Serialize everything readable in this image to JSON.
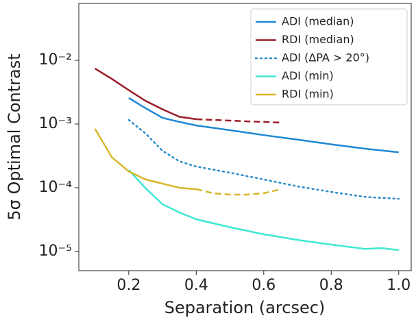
{
  "chart_data": {
    "type": "line",
    "xlabel": "Separation (arcsec)",
    "ylabel": "5σ Optimal Contrast",
    "xlim": [
      0.052,
      1.037
    ],
    "ylim": [
      5e-06,
      0.078
    ],
    "yscale": "log",
    "xticks": [
      0.2,
      0.4,
      0.6,
      0.8,
      {
        "value": 1,
        "label": "1.0"
      }
    ],
    "yticks": [
      {
        "value": 0.01,
        "label": "10⁻²"
      },
      {
        "value": 0.001,
        "label": "10⁻³"
      },
      {
        "value": 0.0001,
        "label": "10⁻⁴"
      },
      {
        "value": 1e-05,
        "label": "10⁻⁵"
      }
    ],
    "legend": "upper right",
    "series": [
      {
        "name": "ADI (median)",
        "color": "#1f88d4",
        "linestyle": "solid",
        "x": [
          0.2,
          0.25,
          0.3,
          0.35,
          0.4,
          0.5,
          0.6,
          0.7,
          0.8,
          0.9,
          1
        ],
        "values": [
          0.00256,
          0.00177,
          0.00125,
          0.00108,
          0.00095,
          0.0008,
          0.00067,
          0.00057,
          0.00048,
          0.00041,
          0.00036
        ]
      },
      {
        "name": "RDI (median)",
        "color": "#9b1c28",
        "linestyle": "solid",
        "dashed_from": 0.4,
        "x": [
          0.1,
          0.15,
          0.2,
          0.25,
          0.3,
          0.35,
          0.4,
          0.45,
          0.5,
          0.55,
          0.6,
          0.65
        ],
        "values": [
          0.0074,
          0.0051,
          0.0034,
          0.0023,
          0.0017,
          0.0013,
          0.00119,
          0.00116,
          0.00113,
          0.0011,
          0.00108,
          0.00105
        ]
      },
      {
        "name": "ADI (ΔPA > 20°)",
        "color": "#2a8ac8",
        "linestyle": "dotted",
        "x": [
          0.2,
          0.25,
          0.3,
          0.35,
          0.4,
          0.5,
          0.6,
          0.7,
          0.8,
          0.9,
          1
        ],
        "values": [
          0.00116,
          0.00071,
          0.00038,
          0.00026,
          0.000215,
          0.000172,
          0.000135,
          0.000105,
          8.6e-05,
          7.2e-05,
          6.7e-05
        ]
      },
      {
        "name": "ADI (min)",
        "color": "#3ee8d0",
        "linestyle": "solid",
        "x": [
          0.2,
          0.25,
          0.3,
          0.35,
          0.4,
          0.5,
          0.6,
          0.7,
          0.8,
          0.9,
          0.95,
          1
        ],
        "values": [
          0.00019,
          9.8e-05,
          5.5e-05,
          4.1e-05,
          3.2e-05,
          2.4e-05,
          1.86e-05,
          1.52e-05,
          1.28e-05,
          1.1e-05,
          1.13e-05,
          1.05e-05
        ]
      },
      {
        "name": "RDI (min)",
        "color": "#d8b62a",
        "linestyle": "solid",
        "dashed_from": 0.4,
        "x": [
          0.1,
          0.15,
          0.2,
          0.25,
          0.3,
          0.35,
          0.4,
          0.45,
          0.5,
          0.55,
          0.6,
          0.65
        ],
        "values": [
          0.00084,
          0.0003,
          0.00018,
          0.000135,
          0.000116,
          0.0001,
          9.5e-05,
          8.2e-05,
          7.8e-05,
          7.8e-05,
          8.2e-05,
          9.5e-05
        ]
      }
    ]
  }
}
